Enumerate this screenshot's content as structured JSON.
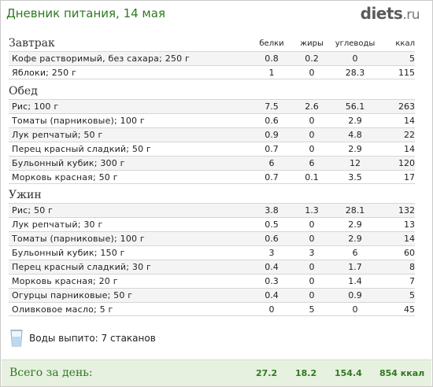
{
  "header": {
    "title": "Дневник питания, 14 мая",
    "logo_main": "diets",
    "logo_suffix": ".ru"
  },
  "columns": [
    "белки",
    "жиры",
    "углеводы",
    "ккал"
  ],
  "meals": [
    {
      "name": "Завтрак",
      "items": [
        {
          "name": "Кофе растворимый, без сахара; 250 г",
          "protein": "0.8",
          "fat": "0.2",
          "carbs": "0",
          "kcal": "5"
        },
        {
          "name": "Яблоки; 250 г",
          "protein": "1",
          "fat": "0",
          "carbs": "28.3",
          "kcal": "115"
        }
      ]
    },
    {
      "name": "Обед",
      "items": [
        {
          "name": "Рис; 100 г",
          "protein": "7.5",
          "fat": "2.6",
          "carbs": "56.1",
          "kcal": "263"
        },
        {
          "name": "Томаты (парниковые); 100 г",
          "protein": "0.6",
          "fat": "0",
          "carbs": "2.9",
          "kcal": "14"
        },
        {
          "name": "Лук репчатый; 50 г",
          "protein": "0.9",
          "fat": "0",
          "carbs": "4.8",
          "kcal": "22"
        },
        {
          "name": "Перец красный сладкий; 50 г",
          "protein": "0.7",
          "fat": "0",
          "carbs": "2.9",
          "kcal": "14"
        },
        {
          "name": "Бульонный кубик; 300 г",
          "protein": "6",
          "fat": "6",
          "carbs": "12",
          "kcal": "120"
        },
        {
          "name": "Морковь красная; 50 г",
          "protein": "0.7",
          "fat": "0.1",
          "carbs": "3.5",
          "kcal": "17"
        }
      ]
    },
    {
      "name": "Ужин",
      "items": [
        {
          "name": "Рис; 50 г",
          "protein": "3.8",
          "fat": "1.3",
          "carbs": "28.1",
          "kcal": "132"
        },
        {
          "name": "Лук репчатый; 30 г",
          "protein": "0.5",
          "fat": "0",
          "carbs": "2.9",
          "kcal": "13"
        },
        {
          "name": "Томаты (парниковые); 100 г",
          "protein": "0.6",
          "fat": "0",
          "carbs": "2.9",
          "kcal": "14"
        },
        {
          "name": "Бульонный кубик; 150 г",
          "protein": "3",
          "fat": "3",
          "carbs": "6",
          "kcal": "60"
        },
        {
          "name": "Перец красный сладкий; 30 г",
          "protein": "0.4",
          "fat": "0",
          "carbs": "1.7",
          "kcal": "8"
        },
        {
          "name": "Морковь красная; 20 г",
          "protein": "0.3",
          "fat": "0",
          "carbs": "1.4",
          "kcal": "7"
        },
        {
          "name": "Огурцы парниковые; 50 г",
          "protein": "0.4",
          "fat": "0",
          "carbs": "0.9",
          "kcal": "5"
        },
        {
          "name": "Оливковое масло; 5 г",
          "protein": "0",
          "fat": "5",
          "carbs": "0",
          "kcal": "45"
        }
      ]
    }
  ],
  "water": {
    "text": "Воды выпито: 7 стаканов",
    "icon": "water-glass-icon"
  },
  "total": {
    "label": "Всего за день:",
    "protein": "27.2",
    "fat": "18.2",
    "carbs": "154.4",
    "kcal": "854 ккал"
  },
  "colors": {
    "accent": "#2d7a1f",
    "total_bg": "#e7f1e0"
  }
}
